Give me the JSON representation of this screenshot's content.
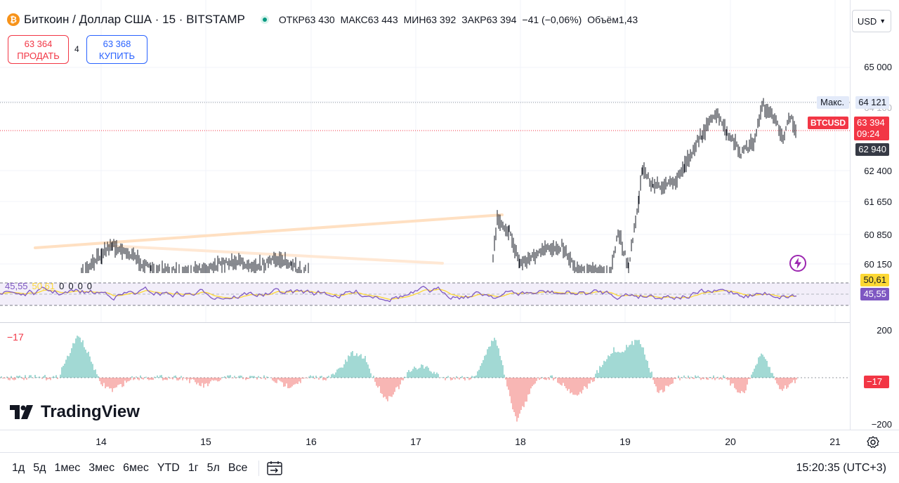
{
  "legend": {
    "coin_glyph": "₿",
    "symbol": "Биткоин / Доллар США · 15 · BITSTAMP",
    "ohlc": [
      {
        "k": "ОТКР",
        "v": "63 430"
      },
      {
        "k": "МАКС",
        "v": "63 443"
      },
      {
        "k": "МИН",
        "v": "63 392"
      },
      {
        "k": "ЗАКР",
        "v": "63 394"
      }
    ],
    "change": "−41 (−0,06%)",
    "volume_label": "Объём",
    "volume_value": "1,43"
  },
  "trade": {
    "sell_price": "63 364",
    "sell_label": "ПРОДАТЬ",
    "buy_price": "63 368",
    "buy_label": "КУПИТЬ",
    "spread": "4"
  },
  "currency": "USD",
  "price_axis": {
    "ticks": [
      "65 000",
      "62 400",
      "61 650",
      "60 850",
      "60 150"
    ],
    "max_label": "Макс.",
    "max_value": "64 121",
    "hidden_tick": "64 100",
    "last_symbol": "BTCUSD",
    "last_price": "63 394",
    "countdown": "09:24",
    "marker_value": "62 940",
    "rsi_ma_value": "50,61",
    "rsi_value": "45,55"
  },
  "rsi": {
    "value": "45,55",
    "ma": "50,61",
    "extras": [
      "0",
      "0",
      "0",
      "0"
    ]
  },
  "oscillator": {
    "value": "−17",
    "ticks": [
      "200",
      "−200"
    ],
    "badge": "−17"
  },
  "logo_text": "TradingView",
  "time_axis": [
    "14",
    "15",
    "16",
    "17",
    "18",
    "19",
    "20",
    "21"
  ],
  "ranges": [
    "1д",
    "5д",
    "1мес",
    "3мес",
    "6мес",
    "YTD",
    "1г",
    "5л",
    "Все"
  ],
  "clock": "15:20:35 (UTC+3)",
  "colors": {
    "up": "#089981",
    "down": "#f23645",
    "rsi_line": "#7e57c2",
    "rsi_ma": "#fdd835",
    "brand": "#2962ff"
  },
  "icons": {
    "settings": "gear-icon",
    "compare": "date-range-icon",
    "flash": "lightning-icon"
  }
}
